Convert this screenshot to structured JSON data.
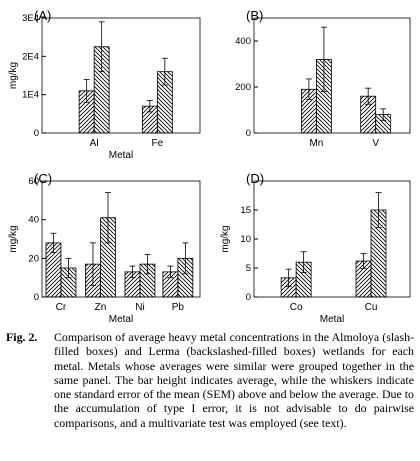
{
  "caption": {
    "label": "Fig. 2.",
    "text": "Comparison of average heavy metal concentrations in the Almoloya (slash-filled boxes) and Lerma (backslashed-filled boxes) wetlands for each metal. Metals whose averages were similar were grouped together in the same panel. The bar height indicates average, while the whiskers indicate one standard error of the mean (SEM) above and below the average. Due to the accumulation of type I error, it is not advisable to do pairwise comparisons, and a multivariate test was employed (see text)."
  },
  "chart_data": [
    {
      "panel": "(A)",
      "type": "bar",
      "xlabel": "Metal",
      "ylabel": "mg/kg",
      "ylim": [
        0,
        30000
      ],
      "yticks": [
        0,
        10000,
        20000,
        30000
      ],
      "ytick_labels": [
        "0",
        "1E4",
        "2E4",
        "3E4"
      ],
      "categories": [
        "Al",
        "Fe"
      ],
      "series": [
        {
          "pattern": "slash",
          "values": [
            11000,
            7000
          ],
          "sem": [
            3000,
            1500
          ]
        },
        {
          "pattern": "backslash",
          "values": [
            22500,
            16000
          ],
          "sem": [
            6500,
            3500
          ]
        }
      ]
    },
    {
      "panel": "(B)",
      "type": "bar",
      "xlabel": "",
      "ylabel": "",
      "ylim": [
        0,
        500
      ],
      "yticks": [
        0,
        200,
        400
      ],
      "ytick_labels": [
        "0",
        "200",
        "400"
      ],
      "categories": [
        "Mn",
        "V"
      ],
      "series": [
        {
          "pattern": "slash",
          "values": [
            190,
            160
          ],
          "sem": [
            45,
            35
          ]
        },
        {
          "pattern": "backslash",
          "values": [
            320,
            80
          ],
          "sem": [
            140,
            25
          ]
        }
      ]
    },
    {
      "panel": "(C)",
      "type": "bar",
      "xlabel": "Metal",
      "ylabel": "mg/kg",
      "ylim": [
        0,
        60
      ],
      "yticks": [
        0,
        20,
        40,
        60
      ],
      "ytick_labels": [
        "0",
        "20",
        "40",
        "60"
      ],
      "categories": [
        "Cr",
        "Zn",
        "Ni",
        "Pb"
      ],
      "series": [
        {
          "pattern": "slash",
          "values": [
            28,
            17,
            13,
            13
          ],
          "sem": [
            5,
            11,
            3,
            3
          ]
        },
        {
          "pattern": "backslash",
          "values": [
            15,
            41,
            17,
            20
          ],
          "sem": [
            5,
            13,
            5,
            8
          ]
        }
      ]
    },
    {
      "panel": "(D)",
      "type": "bar",
      "xlabel": "Metal",
      "ylabel": "mg/kg",
      "ylim": [
        0,
        20
      ],
      "yticks": [
        0,
        5,
        10,
        15
      ],
      "ytick_labels": [
        "0",
        "5",
        "10",
        "15"
      ],
      "categories": [
        "Co",
        "Cu"
      ],
      "series": [
        {
          "pattern": "slash",
          "values": [
            3.3,
            6.2
          ],
          "sem": [
            1.5,
            1.3
          ]
        },
        {
          "pattern": "backslash",
          "values": [
            6.0,
            15.0
          ],
          "sem": [
            1.8,
            3.0
          ]
        }
      ]
    }
  ]
}
